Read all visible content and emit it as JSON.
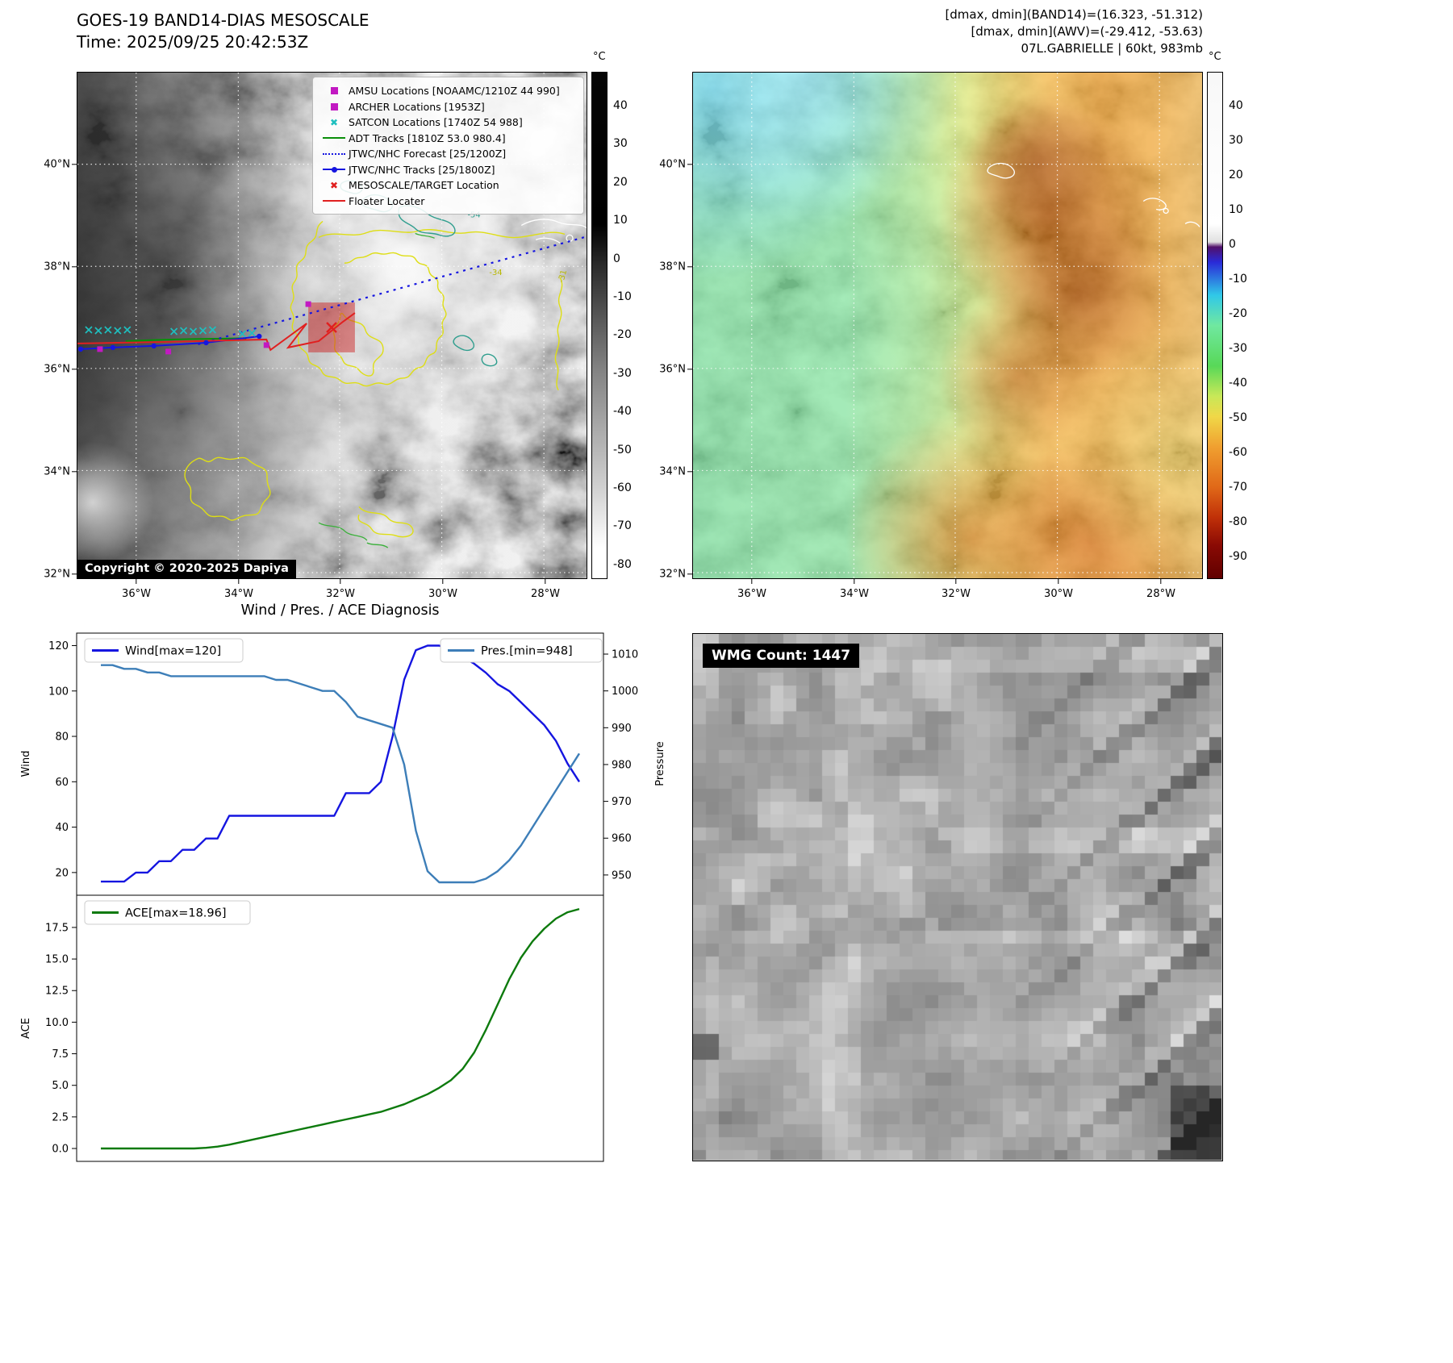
{
  "goes_panel": {
    "title": "GOES-19 BAND14-DIAS MESOSCALE",
    "time_line": "Time: 2025/09/25 20:42:53Z",
    "copyright": "Copyright © 2020-2025 Dapiya",
    "colorbar_unit": "°C",
    "colorbar_ticks": [
      "40",
      "30",
      "20",
      "10",
      "0",
      "-10",
      "-20",
      "-30",
      "-40",
      "-50",
      "-60",
      "-70",
      "-80"
    ],
    "legend": [
      {
        "label": "AMSU Locations [NOAAMC/1210Z 44 990]",
        "marker": "square",
        "color": "#c219c2"
      },
      {
        "label": "ARCHER Locations [1953Z]",
        "marker": "square",
        "color": "#c219c2"
      },
      {
        "label": "SATCON Locations [1740Z 54 988]",
        "marker": "x",
        "color": "#1fbfbf"
      },
      {
        "label": "ADT Tracks [1810Z 53.0 980.4]",
        "marker": "line",
        "color": "#0a8f0a"
      },
      {
        "label": "JTWC/NHC Forecast [25/1200Z]",
        "marker": "dotted-line",
        "color": "#1616e0"
      },
      {
        "label": "JTWC/NHC Tracks [25/1800Z]",
        "marker": "line-dot",
        "color": "#1616e0"
      },
      {
        "label": "MESOSCALE/TARGET Location",
        "marker": "x",
        "color": "#e02020"
      },
      {
        "label": "Floater Locater",
        "marker": "line",
        "color": "#e02020"
      }
    ],
    "contour_labels": [
      "-54",
      "-34",
      "-31"
    ]
  },
  "awv_panel": {
    "info_line1": "[dmax, dmin](BAND14)=(16.323, -51.312)",
    "info_line2": "[dmax, dmin](AWV)=(-29.412, -53.63)",
    "info_line3": "07L.GABRIELLE | 60kt, 983mb",
    "colorbar_unit": "°C",
    "colorbar_ticks": [
      "40",
      "30",
      "20",
      "10",
      "0",
      "-10",
      "-20",
      "-30",
      "-40",
      "-50",
      "-60",
      "-70",
      "-80",
      "-90"
    ]
  },
  "shared_axes": {
    "lat_labels": [
      "40°N",
      "38°N",
      "36°N",
      "34°N",
      "32°N"
    ],
    "lon_labels": [
      "36°W",
      "34°W",
      "32°W",
      "30°W",
      "28°W"
    ]
  },
  "diagnosis": {
    "title": "Wind / Pres. / ACE Diagnosis"
  },
  "wmg_panel": {
    "label": "WMG Count: 1447"
  },
  "chart_data": [
    {
      "type": "line",
      "series": [
        {
          "name": "Wind[max=120]",
          "color": "#1515e0",
          "axis": "left",
          "values": [
            16,
            16,
            16,
            20,
            20,
            25,
            25,
            30,
            30,
            35,
            35,
            45,
            45,
            45,
            45,
            45,
            45,
            45,
            45,
            45,
            45,
            55,
            55,
            55,
            60,
            80,
            105,
            118,
            120,
            120,
            118,
            115,
            112,
            108,
            103,
            100,
            95,
            90,
            85,
            78,
            68,
            60
          ]
        },
        {
          "name": "Pres.[min=948]",
          "color": "#3d7eb8",
          "axis": "right",
          "values": [
            1007,
            1007,
            1006,
            1006,
            1005,
            1005,
            1004,
            1004,
            1004,
            1004,
            1004,
            1004,
            1004,
            1004,
            1004,
            1003,
            1003,
            1002,
            1001,
            1000,
            1000,
            997,
            993,
            992,
            991,
            990,
            980,
            962,
            951,
            948,
            948,
            948,
            948,
            949,
            951,
            954,
            958,
            963,
            968,
            973,
            978,
            983
          ]
        }
      ],
      "left_axis": {
        "label": "Wind",
        "ticks": [
          20,
          40,
          60,
          80,
          100,
          120
        ],
        "range": [
          10,
          125.5
        ]
      },
      "right_axis": {
        "label": "Pressure",
        "ticks": [
          950,
          960,
          970,
          980,
          990,
          1000,
          1010
        ],
        "range": [
          944.5,
          1015.7
        ]
      }
    },
    {
      "type": "line",
      "series": [
        {
          "name": "ACE[max=18.96]",
          "color": "#0d7a0d",
          "axis": "left",
          "values": [
            0,
            0,
            0,
            0,
            0,
            0,
            0,
            0,
            0,
            0.05,
            0.15,
            0.3,
            0.5,
            0.7,
            0.9,
            1.1,
            1.3,
            1.5,
            1.7,
            1.9,
            2.1,
            2.3,
            2.5,
            2.7,
            2.9,
            3.2,
            3.5,
            3.9,
            4.3,
            4.8,
            5.4,
            6.3,
            7.6,
            9.4,
            11.4,
            13.4,
            15.1,
            16.4,
            17.4,
            18.2,
            18.7,
            18.96
          ]
        }
      ],
      "left_axis": {
        "label": "ACE",
        "ticks": [
          0.0,
          2.5,
          5.0,
          7.5,
          10.0,
          12.5,
          15.0,
          17.5
        ],
        "range": [
          -1.02,
          20.05
        ]
      }
    }
  ]
}
